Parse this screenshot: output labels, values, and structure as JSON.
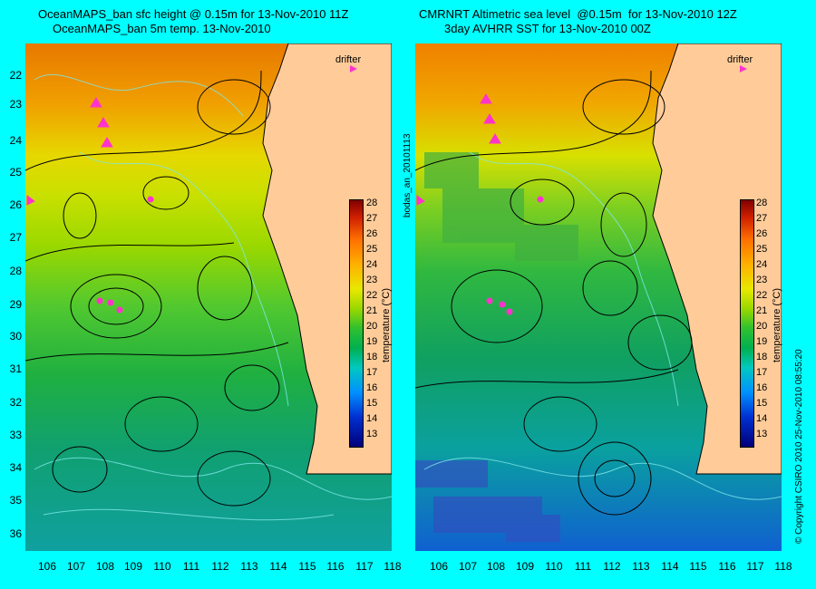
{
  "left_panel": {
    "title_line1": "OceanMAPS_ban sfc height @ 0.15m for 13-Nov-2010 11Z",
    "title_line2": "OceanMAPS_ban 5m temp. 13-Nov-2010",
    "drifter_label": "drifter",
    "colorbar_title": "temperature (°C)"
  },
  "right_panel": {
    "title_line1": "CMRNRT Altimetric sea level  @0.15m  for 13-Nov-2010 12Z",
    "title_line2": "3day AVHRR SST for 13-Nov-2010 00Z",
    "drifter_label": "drifter",
    "colorbar_title": "temperature (°C)",
    "side_label": "bodas_an_20101113"
  },
  "copyright": "© Copyright CSIRO 2010   25-Nov-2010 08:55:20",
  "lat_labels": [
    "22",
    "23",
    "24",
    "25",
    "26",
    "27",
    "28",
    "29",
    "30",
    "31",
    "32",
    "33",
    "34",
    "35",
    "36"
  ],
  "lon_labels": [
    "106",
    "107",
    "108",
    "109",
    "110",
    "111",
    "112",
    "113",
    "114",
    "115",
    "116",
    "117",
    "118"
  ],
  "colorbar_labels": [
    "28",
    "27",
    "26",
    "25",
    "24",
    "23",
    "22",
    "21",
    "20",
    "19",
    "18",
    "17",
    "16",
    "15",
    "14",
    "13"
  ],
  "colors": {
    "background": "#00ffff",
    "land": "#ffcc99",
    "contour": "#000000",
    "isobath": "#7fe8e8",
    "drifter": "#ff33cc"
  }
}
